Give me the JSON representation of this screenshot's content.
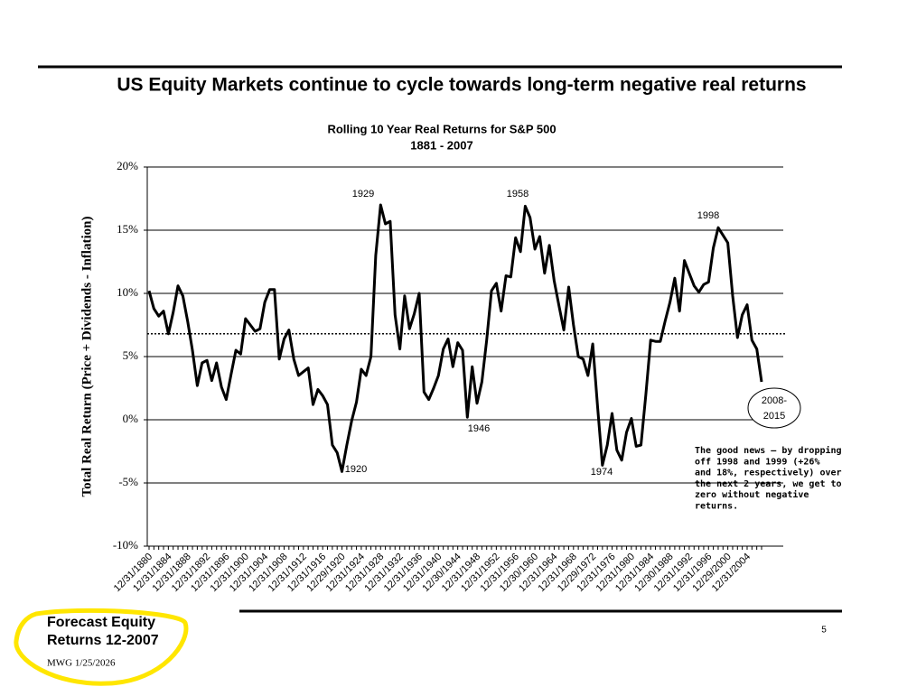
{
  "header": {
    "title": "US Equity Markets continue to cycle towards long-term negative real returns"
  },
  "chart_data": {
    "type": "line",
    "title": "Rolling 10 Year Real Returns for S&P 500",
    "subtitle": "1881 - 2007",
    "y_label": "Total Real Return (Price + Dividends - Inflation)",
    "ylim": [
      -10,
      20
    ],
    "yticks": [
      {
        "value": -10,
        "label": "-10%"
      },
      {
        "value": -5,
        "label": "-5%"
      },
      {
        "value": 0,
        "label": "0%"
      },
      {
        "value": 5,
        "label": "5%"
      },
      {
        "value": 10,
        "label": "10%"
      },
      {
        "value": 15,
        "label": "15%"
      },
      {
        "value": 20,
        "label": "20%"
      }
    ],
    "grid": true,
    "color": "#000000",
    "reference_line": 6.8,
    "categories": [
      "12/31/1880",
      null,
      null,
      null,
      "12/31/1884",
      null,
      null,
      null,
      "12/31/1888",
      null,
      null,
      null,
      "12/31/1892",
      null,
      null,
      null,
      "12/31/1896",
      null,
      null,
      null,
      "12/31/1900",
      null,
      null,
      null,
      "12/31/1904",
      null,
      null,
      null,
      "12/31/1908",
      null,
      null,
      null,
      "12/31/1912",
      null,
      null,
      null,
      "12/31/1916",
      null,
      null,
      null,
      "12/29/1920",
      null,
      null,
      null,
      "12/31/1924",
      null,
      null,
      null,
      "12/31/1928",
      null,
      null,
      null,
      "12/31/1932",
      null,
      null,
      null,
      "12/31/1936",
      null,
      null,
      null,
      "12/31/1940",
      null,
      null,
      null,
      "12/30/1944",
      null,
      null,
      null,
      "12/31/1948",
      null,
      null,
      null,
      "12/31/1952",
      null,
      null,
      null,
      "12/31/1956",
      null,
      null,
      null,
      "12/30/1960",
      null,
      null,
      null,
      "12/31/1964",
      null,
      null,
      null,
      "12/31/1968",
      null,
      null,
      null,
      "12/29/1972",
      null,
      null,
      null,
      "12/31/1976",
      null,
      null,
      null,
      "12/31/1980",
      null,
      null,
      null,
      "12/31/1984",
      null,
      null,
      null,
      "12/30/1988",
      null,
      null,
      null,
      "12/31/1992",
      null,
      null,
      null,
      "12/31/1996",
      null,
      null,
      null,
      "12/29/2000",
      null,
      null,
      null,
      "12/31/2004",
      null,
      null,
      null
    ],
    "values": [
      10.2,
      8.8,
      8.2,
      8.6,
      6.8,
      8.5,
      10.6,
      9.8,
      7.8,
      5.5,
      2.7,
      4.5,
      4.7,
      3.1,
      4.5,
      2.6,
      1.6,
      3.6,
      5.5,
      5.2,
      8.0,
      7.5,
      7.0,
      7.2,
      9.3,
      10.3,
      10.3,
      4.8,
      6.4,
      7.1,
      4.8,
      3.5,
      3.8,
      4.1,
      1.2,
      2.4,
      1.9,
      1.2,
      -2.0,
      -2.6,
      -4.1,
      -2.0,
      -0.1,
      1.4,
      4.0,
      3.5,
      5.0,
      13.0,
      17.0,
      15.5,
      15.7,
      8.3,
      5.6,
      9.8,
      7.2,
      8.4,
      10.0,
      2.2,
      1.6,
      2.5,
      3.5,
      5.6,
      6.4,
      4.2,
      6.1,
      5.5,
      0.2,
      4.2,
      1.3,
      3.0,
      6.3,
      10.2,
      10.8,
      8.6,
      11.4,
      11.3,
      14.4,
      13.3,
      16.9,
      16.0,
      13.5,
      14.5,
      11.6,
      13.8,
      11.0,
      9.0,
      7.1,
      10.5,
      7.5,
      5.0,
      4.8,
      3.5,
      6.0,
      1.0,
      -3.6,
      -2.0,
      0.5,
      -2.4,
      -3.2,
      -1.0,
      0.1,
      -2.1,
      -2.0,
      2.0,
      6.3,
      6.2,
      6.2,
      7.8,
      9.3,
      11.2,
      8.6,
      12.6,
      11.6,
      10.6,
      10.1,
      10.7,
      10.9,
      13.6,
      15.2,
      14.6,
      14.0,
      9.8,
      6.5,
      8.3,
      9.1,
      6.3,
      5.6,
      3.0
    ],
    "annotations": [
      "1929",
      "1958",
      "1998",
      "1920",
      "1946",
      "1974"
    ],
    "forecast_label": [
      "2008-",
      "2015"
    ],
    "note": [
      "The good news – by dropping",
      "off 1998 and 1999 (+26%",
      "and 18%, respectively) over",
      "the next 2 years, we get to",
      "zero without negative",
      "returns."
    ]
  },
  "footer": {
    "box_title": [
      "Forecast Equity",
      "Returns 12-2007"
    ],
    "author": "MWG 1/25/2026",
    "page": "5"
  }
}
